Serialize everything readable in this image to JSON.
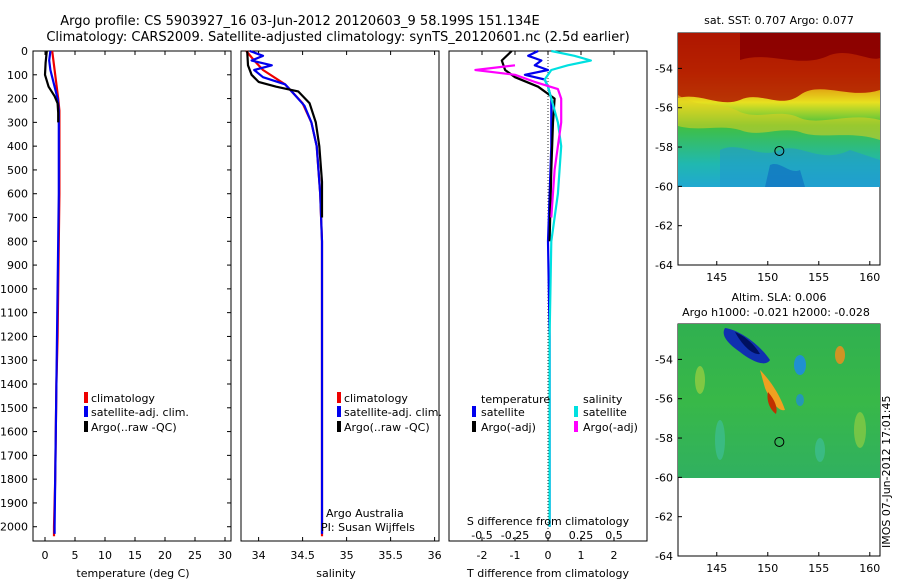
{
  "header": {
    "line1": "Argo profile: CS 5903927_16 03-Jun-2012 20120603_9 58.199S 151.134E",
    "line2": "Climatology: CARS2009. Satellite-adjusted climatology: synTS_20120601.nc (2.5d earlier)"
  },
  "footer": {
    "timestamp": "IMOS 07-Jun-2012 17:01:45"
  },
  "colors": {
    "climatology": "#ee0000",
    "satellite": "#0000ee",
    "argo": "#000000",
    "satellite_s": "#00e0e0",
    "argo_s": "#ff00ff"
  },
  "chart_data": [
    {
      "type": "line",
      "panel": "temperature",
      "xlabel": "temperature (deg C)",
      "xticks": [
        "0",
        "5",
        "10",
        "15",
        "20",
        "25",
        "30"
      ],
      "xlim": [
        -2,
        31
      ],
      "ylim": [
        2060,
        0
      ],
      "yticks": [
        "0",
        "100",
        "200",
        "300",
        "400",
        "500",
        "600",
        "700",
        "800",
        "900",
        "1000",
        "1100",
        "1200",
        "1300",
        "1400",
        "1500",
        "1600",
        "1700",
        "1800",
        "1900",
        "2000"
      ],
      "legend": [
        "climatology",
        "satellite-adj. clim.",
        "Argo(..raw -QC)"
      ],
      "series": [
        {
          "name": "climatology",
          "color": "#ee0000",
          "points": [
            [
              1.2,
              0
            ],
            [
              1.4,
              40
            ],
            [
              1.6,
              80
            ],
            [
              1.9,
              140
            ],
            [
              2.2,
              200
            ],
            [
              2.4,
              250
            ],
            [
              2.4,
              400
            ],
            [
              2.4,
              600
            ],
            [
              2.3,
              800
            ],
            [
              2.2,
              1000
            ],
            [
              2.1,
              1200
            ],
            [
              1.9,
              1400
            ],
            [
              1.8,
              1600
            ],
            [
              1.7,
              1800
            ],
            [
              1.5,
              2000
            ],
            [
              1.5,
              2040
            ]
          ]
        },
        {
          "name": "satellite-adj. clim.",
          "color": "#0000ee",
          "points": [
            [
              0.9,
              0
            ],
            [
              0.7,
              40
            ],
            [
              0.9,
              80
            ],
            [
              1.5,
              140
            ],
            [
              2.1,
              200
            ],
            [
              2.3,
              250
            ],
            [
              2.3,
              400
            ],
            [
              2.3,
              600
            ],
            [
              2.2,
              800
            ],
            [
              2.1,
              1000
            ],
            [
              2.0,
              1200
            ],
            [
              1.9,
              1400
            ],
            [
              1.8,
              1600
            ],
            [
              1.7,
              1800
            ],
            [
              1.6,
              2000
            ],
            [
              1.6,
              2030
            ]
          ]
        },
        {
          "name": "Argo(..raw -QC)",
          "color": "#000000",
          "points": [
            [
              0.3,
              0
            ],
            [
              0.1,
              50
            ],
            [
              0.0,
              100
            ],
            [
              0.6,
              150
            ],
            [
              1.6,
              190
            ],
            [
              2.1,
              220
            ],
            [
              2.2,
              260
            ],
            [
              2.2,
              300
            ]
          ]
        }
      ]
    },
    {
      "type": "line",
      "panel": "salinity",
      "xlabel": "salinity",
      "xticks": [
        "34",
        "34.5",
        "35",
        "35.5",
        "36"
      ],
      "xlim": [
        33.8,
        36.05
      ],
      "ylim": [
        2060,
        0
      ],
      "legend": [
        "climatology",
        "satellite-adj. clim.",
        "Argo(..raw -QC)"
      ],
      "annotation": [
        "Argo Australia",
        "PI: Susan Wijffels"
      ],
      "series": [
        {
          "name": "climatology",
          "color": "#ee0000",
          "points": [
            [
              33.86,
              0
            ],
            [
              33.95,
              40
            ],
            [
              34.05,
              80
            ],
            [
              34.3,
              140
            ],
            [
              34.5,
              220
            ],
            [
              34.6,
              300
            ],
            [
              34.66,
              400
            ],
            [
              34.7,
              600
            ],
            [
              34.72,
              800
            ],
            [
              34.72,
              1000
            ],
            [
              34.72,
              1200
            ],
            [
              34.72,
              1400
            ],
            [
              34.72,
              1600
            ],
            [
              34.72,
              1800
            ],
            [
              34.72,
              2000
            ],
            [
              34.72,
              2040
            ]
          ]
        },
        {
          "name": "satellite-adj. clim.",
          "color": "#0000ee",
          "points": [
            [
              33.9,
              0
            ],
            [
              34.05,
              20
            ],
            [
              33.92,
              40
            ],
            [
              34.15,
              60
            ],
            [
              33.95,
              80
            ],
            [
              34.05,
              110
            ],
            [
              34.3,
              140
            ],
            [
              34.4,
              180
            ],
            [
              34.52,
              230
            ],
            [
              34.6,
              300
            ],
            [
              34.66,
              400
            ],
            [
              34.7,
              600
            ],
            [
              34.72,
              800
            ],
            [
              34.72,
              1000
            ],
            [
              34.72,
              1200
            ],
            [
              34.72,
              1400
            ],
            [
              34.72,
              1600
            ],
            [
              34.72,
              1800
            ],
            [
              34.72,
              2000
            ],
            [
              34.72,
              2030
            ]
          ]
        },
        {
          "name": "Argo(..raw -QC)",
          "color": "#000000",
          "points": [
            [
              33.87,
              0
            ],
            [
              33.88,
              60
            ],
            [
              33.92,
              100
            ],
            [
              34.0,
              130
            ],
            [
              34.2,
              150
            ],
            [
              34.45,
              170
            ],
            [
              34.58,
              220
            ],
            [
              34.65,
              300
            ],
            [
              34.69,
              400
            ],
            [
              34.72,
              550
            ],
            [
              34.72,
              700
            ]
          ]
        }
      ]
    },
    {
      "type": "line",
      "panel": "difference",
      "xlabel": "T difference from climatology",
      "xlabel2": "S difference from climatology",
      "xticks": [
        "-2",
        "-1",
        "0",
        "1",
        "2"
      ],
      "xticks2": [
        "-0.5",
        "-0.25",
        "0",
        "0.25",
        "0.5"
      ],
      "xlim": [
        -3.0,
        3.0
      ],
      "ylim": [
        2060,
        0
      ],
      "legend": {
        "temperature_label": "temperature",
        "salinity_label": "salinity",
        "t_items": [
          "satellite",
          "Argo(-adj)"
        ],
        "s_items": [
          "satellite",
          "Argo(-adj)"
        ]
      },
      "series": [
        {
          "name": "T satellite",
          "color": "#0000ee",
          "points": [
            [
              -0.3,
              0
            ],
            [
              -0.6,
              20
            ],
            [
              -0.2,
              40
            ],
            [
              -0.4,
              60
            ],
            [
              0.0,
              80
            ],
            [
              -0.7,
              100
            ],
            [
              -0.1,
              120
            ],
            [
              0.0,
              150
            ],
            [
              0.1,
              200
            ],
            [
              0.1,
              400
            ],
            [
              0.0,
              800
            ],
            [
              0.05,
              1200
            ],
            [
              0.05,
              1600
            ],
            [
              0.05,
              2000
            ]
          ]
        },
        {
          "name": "T Argo(-adj)",
          "color": "#000000",
          "points": [
            [
              -1.1,
              0
            ],
            [
              -1.4,
              40
            ],
            [
              -1.3,
              80
            ],
            [
              -1.0,
              110
            ],
            [
              -0.3,
              150
            ],
            [
              0.2,
              200
            ],
            [
              0.15,
              300
            ],
            [
              0.1,
              500
            ],
            [
              0.05,
              800
            ]
          ]
        },
        {
          "name": "S satellite",
          "color": "#00e0e0",
          "points": [
            [
              0.1,
              0
            ],
            [
              0.8,
              20
            ],
            [
              1.3,
              40
            ],
            [
              0.6,
              60
            ],
            [
              0.1,
              80
            ],
            [
              -0.1,
              120
            ],
            [
              0.0,
              150
            ],
            [
              0.1,
              200
            ],
            [
              0.3,
              300
            ],
            [
              0.4,
              400
            ],
            [
              0.3,
              600
            ],
            [
              0.1,
              800
            ],
            [
              0.05,
              1200
            ],
            [
              0.05,
              1600
            ],
            [
              0.05,
              2000
            ]
          ]
        },
        {
          "name": "S Argo(-adj)",
          "color": "#ff00ff",
          "points": [
            [
              -1.0,
              60
            ],
            [
              -2.2,
              80
            ],
            [
              -1.0,
              100
            ],
            [
              -0.4,
              130
            ],
            [
              0.3,
              160
            ],
            [
              0.4,
              200
            ],
            [
              0.4,
              300
            ],
            [
              0.2,
              500
            ],
            [
              0.1,
              700
            ]
          ]
        }
      ]
    },
    {
      "type": "heatmap",
      "panel": "sst",
      "title": "sat. SST: 0.707 Argo: 0.077",
      "xticks": [
        "145",
        "150",
        "155",
        "160"
      ],
      "yticks": [
        "-54",
        "-56",
        "-58",
        "-60",
        "-62",
        "-64"
      ],
      "xlim": [
        141.2,
        161.0
      ],
      "ylim": [
        -64.0,
        -52.2
      ],
      "marker": {
        "lon": 151.134,
        "lat": -58.199
      }
    },
    {
      "type": "heatmap",
      "panel": "sla",
      "title": "Altim. SLA: 0.006",
      "subtitle": "Argo h1000: -0.021 h2000: -0.028",
      "xticks": [
        "145",
        "150",
        "155",
        "160"
      ],
      "yticks": [
        "-54",
        "-56",
        "-58",
        "-60",
        "-62",
        "-64"
      ],
      "xlim": [
        141.2,
        161.0
      ],
      "ylim": [
        -64.0,
        -52.2
      ],
      "marker": {
        "lon": 151.134,
        "lat": -58.199
      }
    }
  ]
}
